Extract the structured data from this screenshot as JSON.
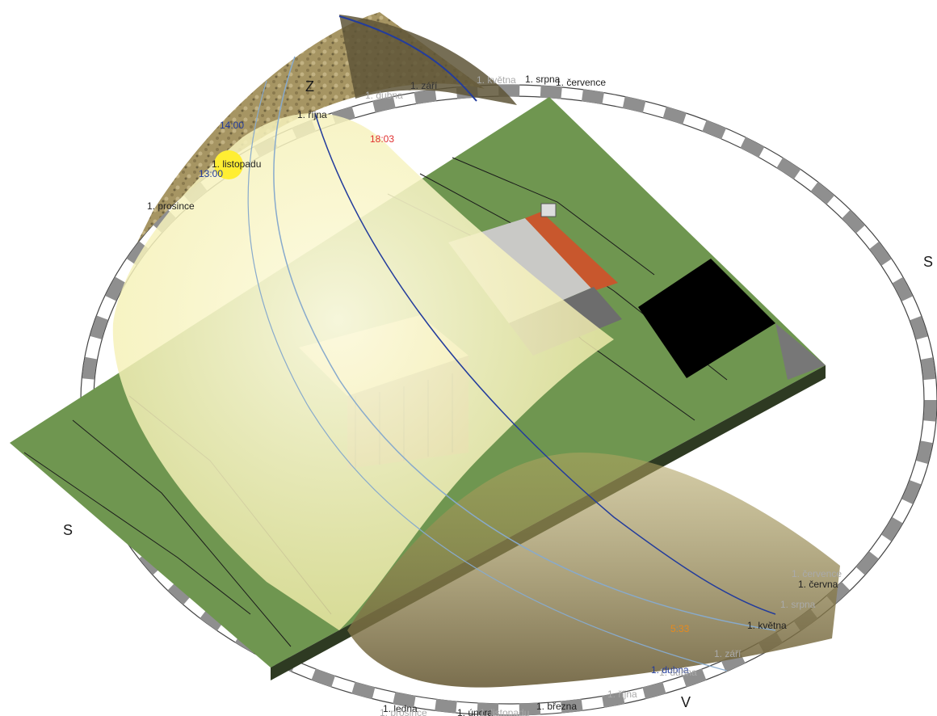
{
  "compass": {
    "north": "S",
    "east": "V",
    "south": "S",
    "west": "Z"
  },
  "sun": {
    "time_labels": [
      "14:00",
      "13:00"
    ],
    "set_time": "18:03",
    "rise_time": "5:33"
  },
  "path_labels_upper": [
    "1. srpna",
    "1. července",
    "1. května",
    "1. září",
    "1. dubna",
    "1. října",
    "1. listopadu",
    "1. prosince"
  ],
  "path_labels_lower": [
    "1. června",
    "1. července",
    "1. srpna",
    "1. května",
    "1. září",
    "1. dubna",
    "1. dubna",
    "1. října",
    "1. ledna",
    "1. prosince",
    "1. února",
    "1. listopadu",
    "1. března"
  ],
  "colors": {
    "terrain": "#6f9650",
    "roof_accent": "#c8572d",
    "sky_dome": "#f6f2b2",
    "sun": "#ffee33",
    "ring_tick": "#8f8f8f",
    "time_blue": "#233c9c",
    "time_red": "#e03030",
    "time_orange": "#e68a1e"
  }
}
